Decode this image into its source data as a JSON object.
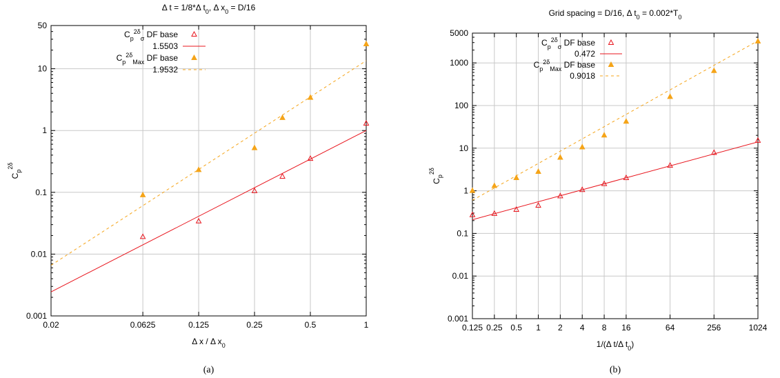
{
  "panels": [
    {
      "title_html": "Δ t = 1/8*Δ t<tspan baseline-shift=\"sub\" font-size=\"9\">0</tspan>, Δ x<tspan baseline-shift=\"sub\" font-size=\"9\">0</tspan> = D/16",
      "xlabel_html": "Δ x / Δ x<tspan baseline-shift=\"sub\" font-size=\"9\">0</tspan>",
      "ylabel": "C_p^{2δ}",
      "caption": "(a)",
      "legend": [
        {
          "label_html": "C<tspan baseline-shift=\"sub\" font-size=\"9\">p</tspan><tspan baseline-shift=\"super\" font-size=\"9\">2δ</tspan><tspan baseline-shift=\"sub\" font-size=\"9\">σ</tspan> DF base",
          "kind": "open-triangle",
          "color": "#e8141c"
        },
        {
          "label_html": "1.5503",
          "kind": "solid-line",
          "color": "#e8141c"
        },
        {
          "label_html": "C<tspan baseline-shift=\"sub\" font-size=\"9\">p</tspan><tspan baseline-shift=\"super\" font-size=\"9\">2δ</tspan><tspan baseline-shift=\"sub\" font-size=\"9\">Max</tspan> DF base",
          "kind": "filled-triangle",
          "color": "#f5a418"
        },
        {
          "label_html": "1.9532",
          "kind": "dashed-line",
          "color": "#f5a418"
        }
      ]
    },
    {
      "title_html": "Grid spacing = D/16, Δ t<tspan baseline-shift=\"sub\" font-size=\"9\">0</tspan> = 0.002*T<tspan baseline-shift=\"sub\" font-size=\"9\">0</tspan>",
      "xlabel_html": "1/(Δ t/Δ t<tspan baseline-shift=\"sub\" font-size=\"9\">0</tspan>)",
      "ylabel": "C_p^{2δ}",
      "caption": "(b)",
      "legend": [
        {
          "label_html": "C<tspan baseline-shift=\"sub\" font-size=\"9\">p</tspan><tspan baseline-shift=\"super\" font-size=\"9\">2δ</tspan><tspan baseline-shift=\"sub\" font-size=\"9\">σ</tspan> DF base",
          "kind": "open-triangle",
          "color": "#e8141c"
        },
        {
          "label_html": "0.472",
          "kind": "solid-line",
          "color": "#e8141c"
        },
        {
          "label_html": "C<tspan baseline-shift=\"sub\" font-size=\"9\">p</tspan><tspan baseline-shift=\"super\" font-size=\"9\">2δ</tspan><tspan baseline-shift=\"sub\" font-size=\"9\">Max</tspan> DF base",
          "kind": "filled-triangle",
          "color": "#f5a418"
        },
        {
          "label_html": "0.9018",
          "kind": "dashed-line",
          "color": "#f5a418"
        }
      ]
    }
  ],
  "chart_data": [
    {
      "type": "scatter",
      "title": "Δ t = 1/8*Δ t0, Δ x0 = D/16",
      "xlabel": "Δ x / Δ x0",
      "ylabel": "Cp^2δ",
      "xscale": "log2",
      "yscale": "log10",
      "xlim": [
        0.02,
        1
      ],
      "ylim": [
        0.001,
        50
      ],
      "xticks": [
        0.02,
        0.0625,
        0.125,
        0.25,
        0.5,
        1
      ],
      "xtick_labels": [
        "0.02",
        "0.0625",
        "0.125",
        "0.25",
        "0.5",
        "1"
      ],
      "yticks": [
        0.001,
        0.01,
        0.1,
        1,
        10,
        50
      ],
      "ytick_labels": [
        "0.001",
        "0.01",
        "0.1",
        "1",
        "10",
        "50"
      ],
      "grid": true,
      "legend_position": "top-left",
      "series": [
        {
          "name": "Cp2δσ DF base",
          "marker": "open-triangle",
          "color": "#e8141c",
          "x": [
            0.0625,
            0.125,
            0.25,
            0.3536,
            0.5,
            1
          ],
          "y": [
            0.019,
            0.034,
            0.105,
            0.18,
            0.35,
            1.3
          ]
        },
        {
          "name": "1.5503",
          "kind": "fit-line",
          "style": "solid",
          "color": "#e8141c",
          "x": [
            0.02,
            1
          ],
          "y": [
            0.00245,
            1.0
          ]
        },
        {
          "name": "Cp2δMax DF base",
          "marker": "filled-triangle",
          "color": "#f5a418",
          "x": [
            0.0625,
            0.125,
            0.25,
            0.3536,
            0.5,
            1
          ],
          "y": [
            0.09,
            0.23,
            0.52,
            1.6,
            3.4,
            25
          ]
        },
        {
          "name": "1.9532",
          "kind": "fit-line",
          "style": "dashed",
          "color": "#f5a418",
          "x": [
            0.02,
            1
          ],
          "y": [
            0.0066,
            13.5
          ]
        }
      ]
    },
    {
      "type": "scatter",
      "title": "Grid spacing = D/16, Δ t0 = 0.002*T0",
      "xlabel": "1/(Δ t/Δ t0)",
      "ylabel": "Cp^2δ",
      "xscale": "log2",
      "yscale": "log10",
      "xlim": [
        0.125,
        1024
      ],
      "ylim": [
        0.001,
        5000
      ],
      "xticks": [
        0.125,
        0.25,
        0.5,
        1,
        2,
        4,
        8,
        16,
        64,
        256,
        1024
      ],
      "xtick_labels": [
        "0.125",
        "0.25",
        "0.5",
        "1",
        "2",
        "4",
        "8",
        "16",
        "64",
        "256",
        "1024"
      ],
      "yticks": [
        0.001,
        0.01,
        0.1,
        1,
        10,
        100,
        1000,
        5000
      ],
      "ytick_labels": [
        "0.001",
        "0.01",
        "0.1",
        "1",
        "10",
        "100",
        "1000",
        "5000"
      ],
      "grid": true,
      "legend_position": "top-left",
      "series": [
        {
          "name": "Cp2δσ DF base",
          "marker": "open-triangle",
          "color": "#e8141c",
          "x": [
            0.125,
            0.25,
            0.5,
            1,
            2,
            4,
            8,
            16,
            64,
            256,
            1024
          ],
          "y": [
            0.27,
            0.29,
            0.36,
            0.45,
            0.75,
            1.05,
            1.45,
            2.0,
            3.9,
            7.8,
            15
          ]
        },
        {
          "name": "0.472",
          "kind": "fit-line",
          "style": "solid",
          "color": "#e8141c",
          "x": [
            0.125,
            1024
          ],
          "y": [
            0.21,
            14
          ]
        },
        {
          "name": "Cp2δMax DF base",
          "marker": "filled-triangle",
          "color": "#f5a418",
          "x": [
            0.125,
            0.25,
            0.5,
            1,
            2,
            4,
            8,
            16,
            64,
            256,
            1024
          ],
          "y": [
            1.0,
            1.3,
            2.0,
            2.8,
            6.0,
            10.5,
            20,
            42,
            160,
            650,
            3200
          ]
        },
        {
          "name": "0.9018",
          "kind": "fit-line",
          "style": "dashed",
          "color": "#f5a418",
          "x": [
            0.125,
            1024
          ],
          "y": [
            0.6,
            3300
          ]
        }
      ]
    }
  ]
}
